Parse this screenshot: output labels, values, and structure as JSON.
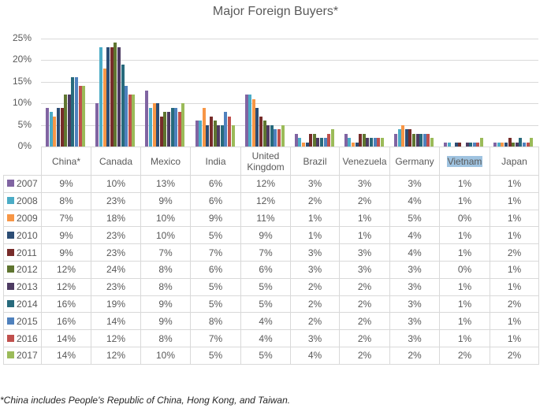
{
  "title": "Major Foreign Buyers*",
  "footnote": "*China includes People's Republic of China, Hong Kong, and Taiwan.",
  "y_axis": {
    "ticks": [
      "25%",
      "20%",
      "15%",
      "10%",
      "5%",
      "0%"
    ]
  },
  "table": {
    "headers": [
      "China*",
      "Canada",
      "Mexico",
      "India",
      "United Kingdom",
      "Brazil",
      "Venezuela",
      "Germany",
      "Vietnam",
      "Japan"
    ],
    "highlighted_header": "Vietnam",
    "rows": [
      {
        "year": "2007",
        "color": "#8064a2",
        "values": [
          "9%",
          "10%",
          "13%",
          "6%",
          "12%",
          "3%",
          "3%",
          "3%",
          "1%",
          "1%"
        ]
      },
      {
        "year": "2008",
        "color": "#4bacc6",
        "values": [
          "8%",
          "23%",
          "9%",
          "6%",
          "12%",
          "2%",
          "2%",
          "4%",
          "1%",
          "1%"
        ]
      },
      {
        "year": "2009",
        "color": "#f79646",
        "values": [
          "7%",
          "18%",
          "10%",
          "9%",
          "11%",
          "1%",
          "1%",
          "5%",
          "0%",
          "1%"
        ]
      },
      {
        "year": "2010",
        "color": "#2c4d75",
        "values": [
          "9%",
          "23%",
          "10%",
          "5%",
          "9%",
          "1%",
          "1%",
          "4%",
          "1%",
          "1%"
        ]
      },
      {
        "year": "2011",
        "color": "#772c2a",
        "values": [
          "9%",
          "23%",
          "7%",
          "7%",
          "7%",
          "3%",
          "3%",
          "4%",
          "1%",
          "2%"
        ]
      },
      {
        "year": "2012",
        "color": "#5f7530",
        "values": [
          "12%",
          "24%",
          "8%",
          "6%",
          "6%",
          "3%",
          "3%",
          "3%",
          "0%",
          "1%"
        ]
      },
      {
        "year": "2013",
        "color": "#4d3b62",
        "values": [
          "12%",
          "23%",
          "8%",
          "5%",
          "5%",
          "2%",
          "2%",
          "3%",
          "1%",
          "1%"
        ]
      },
      {
        "year": "2014",
        "color": "#276a7c",
        "values": [
          "16%",
          "19%",
          "9%",
          "5%",
          "5%",
          "2%",
          "2%",
          "3%",
          "1%",
          "2%"
        ]
      },
      {
        "year": "2015",
        "color": "#4f81bd",
        "values": [
          "16%",
          "14%",
          "9%",
          "8%",
          "4%",
          "2%",
          "2%",
          "3%",
          "1%",
          "1%"
        ]
      },
      {
        "year": "2016",
        "color": "#c0504d",
        "values": [
          "14%",
          "12%",
          "8%",
          "7%",
          "4%",
          "3%",
          "2%",
          "3%",
          "1%",
          "1%"
        ]
      },
      {
        "year": "2017",
        "color": "#9bbb59",
        "values": [
          "14%",
          "12%",
          "10%",
          "5%",
          "5%",
          "4%",
          "2%",
          "2%",
          "2%",
          "2%"
        ]
      }
    ]
  },
  "chart_data": {
    "type": "bar",
    "title": "Major Foreign Buyers*",
    "xlabel": "",
    "ylabel": "",
    "ylim": [
      0,
      25
    ],
    "y_ticks": [
      "0%",
      "5%",
      "10%",
      "15%",
      "20%",
      "25%"
    ],
    "grid": true,
    "legend_position": "data table (left of rows)",
    "categories": [
      "China*",
      "Canada",
      "Mexico",
      "India",
      "United Kingdom",
      "Brazil",
      "Venezuela",
      "Germany",
      "Vietnam",
      "Japan"
    ],
    "series": [
      {
        "name": "2007",
        "color": "#8064a2",
        "values": [
          9,
          10,
          13,
          6,
          12,
          3,
          3,
          3,
          1,
          1
        ]
      },
      {
        "name": "2008",
        "color": "#4bacc6",
        "values": [
          8,
          23,
          9,
          6,
          12,
          2,
          2,
          4,
          1,
          1
        ]
      },
      {
        "name": "2009",
        "color": "#f79646",
        "values": [
          7,
          18,
          10,
          9,
          11,
          1,
          1,
          5,
          0,
          1
        ]
      },
      {
        "name": "2010",
        "color": "#2c4d75",
        "values": [
          9,
          23,
          10,
          5,
          9,
          1,
          1,
          4,
          1,
          1
        ]
      },
      {
        "name": "2011",
        "color": "#772c2a",
        "values": [
          9,
          23,
          7,
          7,
          7,
          3,
          3,
          4,
          1,
          2
        ]
      },
      {
        "name": "2012",
        "color": "#5f7530",
        "values": [
          12,
          24,
          8,
          6,
          6,
          3,
          3,
          3,
          0,
          1
        ]
      },
      {
        "name": "2013",
        "color": "#4d3b62",
        "values": [
          12,
          23,
          8,
          5,
          5,
          2,
          2,
          3,
          1,
          1
        ]
      },
      {
        "name": "2014",
        "color": "#276a7c",
        "values": [
          16,
          19,
          9,
          5,
          5,
          2,
          2,
          3,
          1,
          2
        ]
      },
      {
        "name": "2015",
        "color": "#4f81bd",
        "values": [
          16,
          14,
          9,
          8,
          4,
          2,
          2,
          3,
          1,
          1
        ]
      },
      {
        "name": "2016",
        "color": "#c0504d",
        "values": [
          14,
          12,
          8,
          7,
          4,
          3,
          2,
          3,
          1,
          1
        ]
      },
      {
        "name": "2017",
        "color": "#9bbb59",
        "values": [
          14,
          12,
          10,
          5,
          5,
          4,
          2,
          2,
          2,
          2
        ]
      }
    ],
    "annotations": [
      "*China includes People's Republic of China, Hong Kong, and Taiwan."
    ]
  }
}
